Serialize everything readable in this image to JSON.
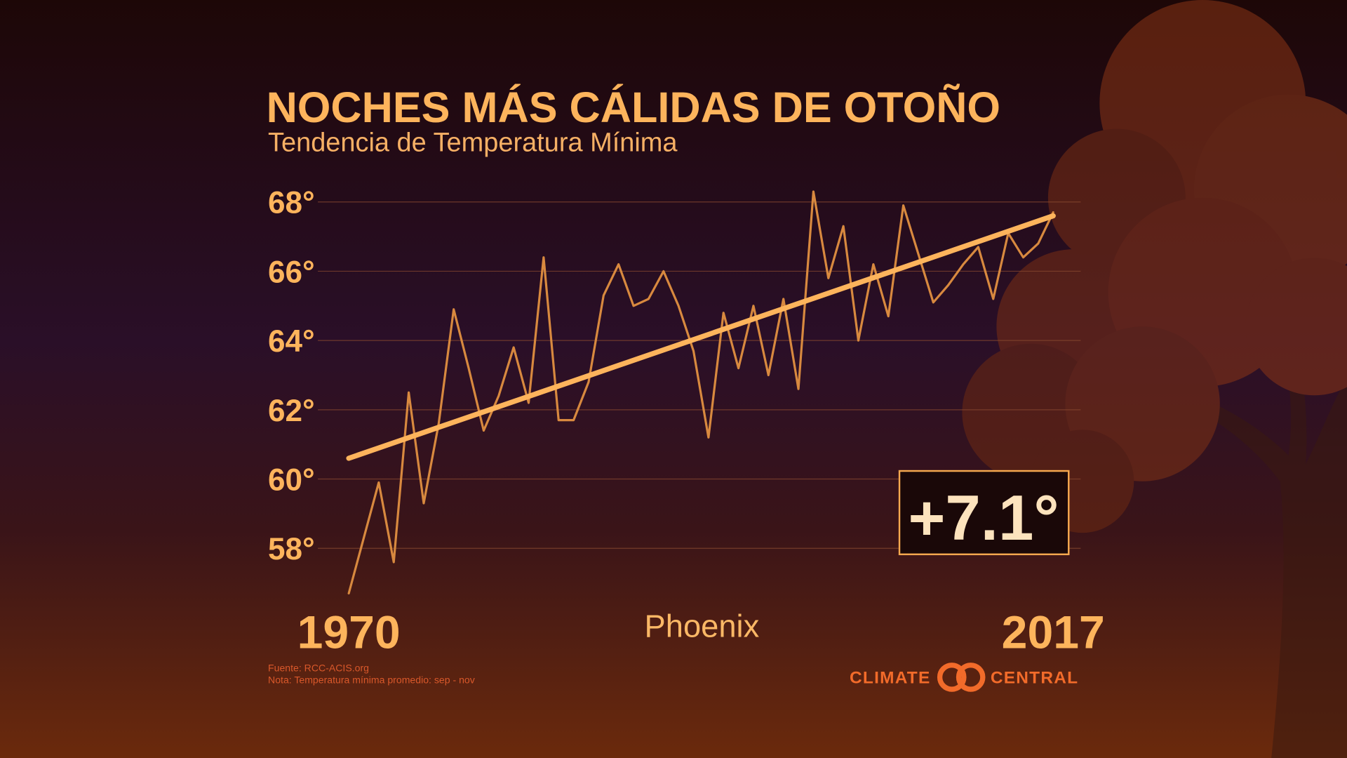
{
  "chart_data": {
    "type": "line",
    "title": "NOCHES MÁS CÁLIDAS DE OTOÑO",
    "subtitle": "Tendencia de Temperatura Mínima",
    "location": "Phoenix",
    "x": [
      1970,
      1971,
      1972,
      1973,
      1974,
      1975,
      1976,
      1977,
      1978,
      1979,
      1980,
      1981,
      1982,
      1983,
      1984,
      1985,
      1986,
      1987,
      1988,
      1989,
      1990,
      1991,
      1992,
      1993,
      1994,
      1995,
      1996,
      1997,
      1998,
      1999,
      2000,
      2001,
      2002,
      2003,
      2004,
      2005,
      2006,
      2007,
      2008,
      2009,
      2010,
      2011,
      2012,
      2013,
      2014,
      2015,
      2016,
      2017
    ],
    "series": [
      {
        "color": "#d8893f",
        "values": [
          56.7,
          58.3,
          59.9,
          57.6,
          62.5,
          59.3,
          61.6,
          64.9,
          63.2,
          61.4,
          62.4,
          63.8,
          62.2,
          66.4,
          61.7,
          61.7,
          62.8,
          65.3,
          66.2,
          65.0,
          65.2,
          66.0,
          65.0,
          63.7,
          61.2,
          64.8,
          63.2,
          65.0,
          63.0,
          65.2,
          62.6,
          68.3,
          65.8,
          67.3,
          64.0,
          66.2,
          64.7,
          67.9,
          66.5,
          65.1,
          65.6,
          66.2,
          66.7,
          65.2,
          67.1,
          66.4,
          66.8,
          67.7
        ]
      }
    ],
    "trend": {
      "color": "#fdb45c",
      "x": [
        1970,
        2017
      ],
      "values": [
        60.6,
        67.6
      ]
    },
    "annotation": "+7.1°",
    "xlim": [
      1970,
      2017
    ],
    "xticks": [
      1970,
      2017
    ],
    "ylim": [
      56.5,
      68.5
    ],
    "yticks": [
      {
        "value": 58,
        "label": "58°"
      },
      {
        "value": 60,
        "label": "60°"
      },
      {
        "value": 62,
        "label": "62°"
      },
      {
        "value": 64,
        "label": "64°"
      },
      {
        "value": 66,
        "label": "66°"
      },
      {
        "value": 68,
        "label": "68°"
      }
    ],
    "grid": true,
    "source": "Fuente: RCC-ACIS.org",
    "note": "Nota: Temperatura mínima promedio: sep - nov",
    "logo": [
      "CLIMATE",
      "CENTRAL"
    ]
  }
}
